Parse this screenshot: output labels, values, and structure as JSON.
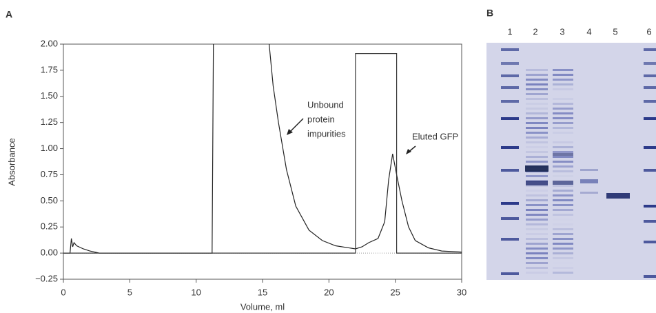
{
  "panel_labels": [
    "A",
    "B"
  ],
  "chart_data": {
    "type": "line",
    "x_label": "Volume, ml",
    "y_label": "Absorbance",
    "xlim": [
      0,
      30
    ],
    "ylim": [
      -0.25,
      2.0
    ],
    "xticks": [
      0,
      5,
      10,
      15,
      20,
      25,
      30
    ],
    "yticks": [
      {
        "value": -0.25,
        "label": "−0.25"
      },
      {
        "value": 0,
        "label": "0.00"
      },
      {
        "value": 0.25,
        "label": "0.25"
      },
      {
        "value": 0.5,
        "label": "0.50"
      },
      {
        "value": 0.75,
        "label": "0.75"
      },
      {
        "value": 1.0,
        "label": "1.00"
      },
      {
        "value": 1.25,
        "label": "1.25"
      },
      {
        "value": 1.5,
        "label": "1.50"
      },
      {
        "value": 1.75,
        "label": "1.75"
      },
      {
        "value": 2.0,
        "label": "2.00"
      }
    ],
    "zero_line": true,
    "series": [
      {
        "color": "#222222",
        "x": [
          0,
          0.5,
          0.6,
          0.7,
          0.8,
          1.0,
          1.5,
          2.0,
          2.7,
          11.2,
          11.3,
          13,
          15.5,
          15.8,
          16.2,
          16.8,
          17.5,
          18.5,
          19.5,
          20.5,
          22,
          22.5,
          23,
          23.7,
          24.2,
          24.5,
          24.8,
          25.1,
          25.5,
          26,
          26.5,
          27.5,
          28.5,
          30
        ],
        "values": [
          0,
          0,
          0.14,
          0.06,
          0.1,
          0.07,
          0.04,
          0.02,
          0,
          0,
          2.0,
          null,
          2.0,
          1.6,
          1.25,
          0.8,
          0.45,
          0.22,
          0.12,
          0.07,
          0.04,
          0.06,
          0.1,
          0.14,
          0.3,
          0.7,
          0.95,
          0.75,
          0.5,
          0.25,
          0.12,
          0.05,
          0.02,
          0.01
        ]
      },
      {
        "color": "#333333",
        "x": [
          0,
          22,
          22,
          25.1,
          25.1,
          30
        ],
        "values": [
          0,
          0,
          1.91,
          1.91,
          0,
          0
        ]
      }
    ],
    "annotations": [
      {
        "lines": [
          "Unbound",
          "protein",
          "impurities"
        ]
      },
      {
        "lines": [
          "Eluted GFP"
        ]
      }
    ]
  },
  "gel": {
    "lanes": [
      "1",
      "2",
      "3",
      "4",
      "5",
      "6"
    ]
  }
}
